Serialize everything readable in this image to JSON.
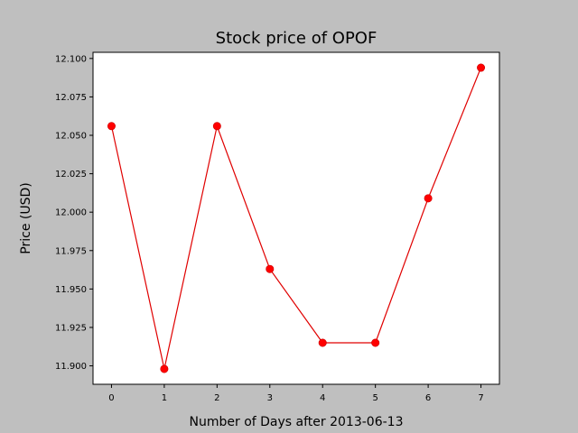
{
  "chart_data": {
    "type": "line",
    "title": "Stock price of OPOF",
    "xlabel": "Number of Days after 2013-06-13",
    "ylabel": "Price (USD)",
    "x": [
      0,
      1,
      2,
      3,
      4,
      5,
      6,
      7
    ],
    "series": [
      {
        "name": "",
        "values": [
          12.056,
          11.898,
          12.056,
          11.963,
          11.915,
          11.915,
          12.009,
          12.094
        ]
      }
    ],
    "xticks": [
      "0",
      "1",
      "2",
      "3",
      "4",
      "5",
      "6",
      "7"
    ],
    "yticks": [
      "11.900",
      "11.925",
      "11.950",
      "11.975",
      "12.000",
      "12.025",
      "12.050",
      "12.075",
      "12.100"
    ],
    "xlim": [
      -0.35,
      7.35
    ],
    "ylim": [
      11.888,
      12.104
    ],
    "grid": false,
    "colors": {
      "line": "#e00000",
      "marker": "#ff0000",
      "background": "#bfbfbf",
      "plot_area": "#ffffff"
    }
  }
}
